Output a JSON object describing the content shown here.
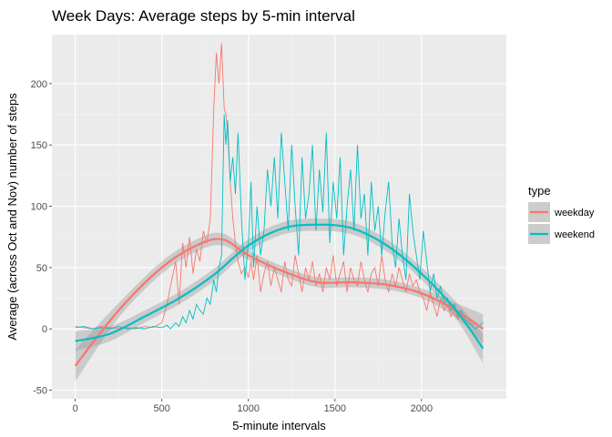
{
  "chart_data": {
    "type": "line",
    "title": "Week Days: Average steps by 5-min interval",
    "xlabel": "5-minute intervals",
    "ylabel": "Average (across Oct and Nov) number of steps",
    "xlim": [
      -135,
      2490
    ],
    "ylim": [
      -57,
      240
    ],
    "x_ticks": [
      0,
      500,
      1000,
      1500,
      2000
    ],
    "y_ticks": [
      -50,
      0,
      50,
      100,
      150,
      200
    ],
    "grid": true,
    "legend": {
      "title": "type",
      "position": "right",
      "entries": [
        "weekday",
        "weekend"
      ]
    },
    "series": [
      {
        "name": "weekday",
        "color": "#F8766D",
        "x": [
          0,
          50,
          100,
          150,
          200,
          250,
          300,
          350,
          400,
          450,
          500,
          530,
          550,
          580,
          600,
          620,
          640,
          660,
          680,
          700,
          720,
          740,
          760,
          780,
          800,
          815,
          830,
          845,
          860,
          870,
          880,
          895,
          910,
          925,
          940,
          960,
          980,
          1000,
          1015,
          1030,
          1050,
          1070,
          1090,
          1110,
          1130,
          1150,
          1170,
          1190,
          1210,
          1230,
          1250,
          1270,
          1290,
          1310,
          1330,
          1350,
          1370,
          1390,
          1410,
          1430,
          1450,
          1470,
          1490,
          1510,
          1530,
          1550,
          1570,
          1590,
          1610,
          1630,
          1650,
          1670,
          1690,
          1710,
          1730,
          1750,
          1770,
          1790,
          1810,
          1830,
          1850,
          1870,
          1890,
          1910,
          1930,
          1950,
          1970,
          1990,
          2010,
          2030,
          2050,
          2070,
          2090,
          2110,
          2130,
          2150,
          2170,
          2190,
          2210,
          2230,
          2250,
          2270,
          2290,
          2310,
          2330,
          2355
        ],
        "y": [
          2,
          1,
          0,
          2,
          1,
          0,
          1,
          0,
          2,
          1,
          5,
          20,
          35,
          55,
          20,
          70,
          50,
          75,
          45,
          65,
          55,
          80,
          70,
          90,
          180,
          225,
          200,
          233,
          180,
          175,
          160,
          120,
          90,
          70,
          55,
          45,
          50,
          42,
          55,
          40,
          60,
          30,
          45,
          55,
          35,
          50,
          40,
          30,
          55,
          40,
          35,
          60,
          45,
          30,
          50,
          40,
          55,
          35,
          45,
          30,
          50,
          40,
          60,
          35,
          45,
          55,
          30,
          50,
          40,
          35,
          55,
          40,
          30,
          45,
          50,
          35,
          60,
          40,
          30,
          45,
          35,
          50,
          40,
          30,
          45,
          35,
          40,
          30,
          25,
          15,
          30,
          20,
          10,
          25,
          15,
          20,
          10,
          15,
          8,
          12,
          5,
          8,
          3,
          5,
          2,
          1
        ]
      },
      {
        "name": "weekend",
        "color": "#00BFC4",
        "x": [
          0,
          50,
          100,
          150,
          200,
          250,
          300,
          350,
          400,
          450,
          500,
          530,
          550,
          580,
          600,
          620,
          640,
          660,
          680,
          700,
          720,
          740,
          760,
          780,
          800,
          815,
          830,
          845,
          860,
          870,
          880,
          895,
          910,
          925,
          940,
          960,
          980,
          1000,
          1015,
          1030,
          1050,
          1070,
          1090,
          1110,
          1130,
          1150,
          1170,
          1190,
          1210,
          1230,
          1250,
          1270,
          1290,
          1310,
          1330,
          1350,
          1370,
          1390,
          1410,
          1430,
          1450,
          1470,
          1490,
          1510,
          1530,
          1550,
          1570,
          1590,
          1610,
          1630,
          1650,
          1670,
          1690,
          1710,
          1730,
          1750,
          1770,
          1790,
          1810,
          1830,
          1850,
          1870,
          1890,
          1910,
          1930,
          1950,
          1970,
          1990,
          2010,
          2030,
          2050,
          2070,
          2090,
          2110,
          2130,
          2150,
          2170,
          2190,
          2210,
          2230,
          2250,
          2270,
          2290,
          2310,
          2330,
          2355
        ],
        "y": [
          1,
          2,
          0,
          1,
          0,
          2,
          0,
          1,
          0,
          2,
          1,
          3,
          0,
          5,
          2,
          10,
          5,
          15,
          8,
          20,
          15,
          12,
          25,
          20,
          40,
          30,
          50,
          60,
          175,
          150,
          170,
          120,
          140,
          110,
          160,
          90,
          40,
          70,
          120,
          50,
          100,
          60,
          80,
          130,
          100,
          140,
          90,
          160,
          120,
          80,
          150,
          100,
          60,
          140,
          90,
          110,
          150,
          80,
          130,
          95,
          160,
          70,
          120,
          90,
          140,
          60,
          100,
          130,
          80,
          150,
          90,
          110,
          60,
          120,
          80,
          100,
          60,
          95,
          120,
          70,
          50,
          90,
          60,
          40,
          110,
          80,
          60,
          40,
          80,
          55,
          30,
          45,
          25,
          35,
          20,
          25,
          15,
          20,
          10,
          15,
          8,
          5,
          3,
          0,
          2,
          5
        ]
      },
      {
        "name": "weekday",
        "color": "#F8766D",
        "smooth": true,
        "x": [
          0,
          250,
          500,
          700,
          850,
          1000,
          1200,
          1400,
          1600,
          1800,
          2000,
          2200,
          2355
        ],
        "y": [
          -30,
          15,
          50,
          68,
          73,
          60,
          47,
          38,
          38,
          36,
          29,
          15,
          0
        ],
        "band": [
          13,
          6,
          5,
          5,
          5,
          4,
          4,
          4,
          4,
          4,
          4,
          6,
          12
        ]
      },
      {
        "name": "weekend",
        "color": "#00BFC4",
        "smooth": true,
        "x": [
          0,
          200,
          400,
          600,
          800,
          1000,
          1200,
          1400,
          1600,
          1800,
          2000,
          2200,
          2355
        ],
        "y": [
          -10,
          -4,
          10,
          25,
          44,
          68,
          82,
          85,
          82,
          68,
          45,
          15,
          -16
        ],
        "band": [
          8,
          6,
          5,
          5,
          5,
          5,
          5,
          5,
          5,
          5,
          5,
          7,
          12
        ]
      }
    ]
  }
}
